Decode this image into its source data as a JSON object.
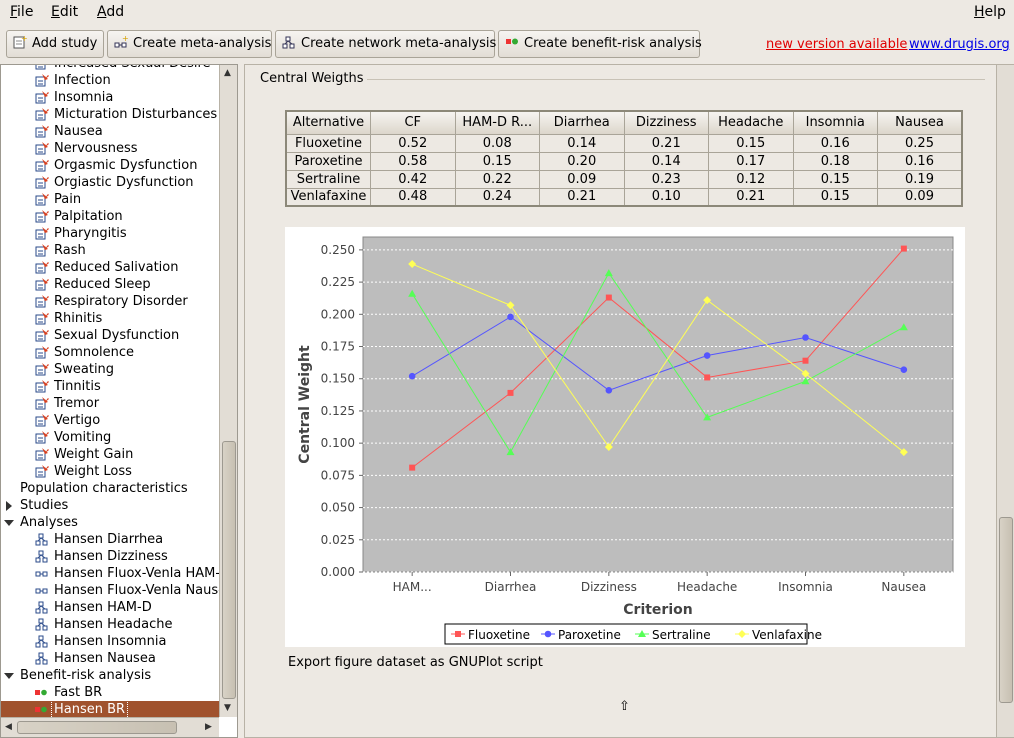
{
  "menubar": {
    "file": {
      "mnemonic": "F",
      "rest": "ile"
    },
    "edit": {
      "mnemonic": "E",
      "rest": "dit"
    },
    "add": {
      "mnemonic": "A",
      "rest": "dd"
    },
    "help": {
      "mnemonic": "H",
      "rest": "elp"
    }
  },
  "toolbar": {
    "add_study": "Add study",
    "create_meta": "Create meta-analysis",
    "create_network": "Create network meta-analysis",
    "create_br": "Create benefit-risk analysis",
    "new_version": "new version available",
    "website": "www.drugis.org"
  },
  "tree": {
    "endpoints": [
      "Increased Sexual Desire",
      "Infection",
      "Insomnia",
      "Micturation Disturbances",
      "Nausea",
      "Nervousness",
      "Orgasmic Dysfunction",
      "Orgiastic Dysfunction",
      "Pain",
      "Palpitation",
      "Pharyngitis",
      "Rash",
      "Reduced Salivation",
      "Reduced Sleep",
      "Respiratory Disorder",
      "Rhinitis",
      "Sexual Dysfunction",
      "Somnolence",
      "Sweating",
      "Tinnitis",
      "Tremor",
      "Vertigo",
      "Vomiting",
      "Weight Gain",
      "Weight Loss"
    ],
    "population": "Population characteristics",
    "studies": "Studies",
    "analyses_header": "Analyses",
    "analyses": [
      {
        "label": "Hansen Diarrhea",
        "kind": "network"
      },
      {
        "label": "Hansen Dizziness",
        "kind": "network"
      },
      {
        "label": "Hansen Fluox-Venla HAM-D",
        "kind": "pairwise"
      },
      {
        "label": "Hansen Fluox-Venla Nausea",
        "kind": "pairwise"
      },
      {
        "label": "Hansen HAM-D",
        "kind": "network"
      },
      {
        "label": "Hansen Headache",
        "kind": "network"
      },
      {
        "label": "Hansen Insomnia",
        "kind": "network"
      },
      {
        "label": "Hansen Nausea",
        "kind": "network"
      }
    ],
    "br_header": "Benefit-risk analysis",
    "br_items": [
      "Fast BR",
      "Hansen BR"
    ]
  },
  "section": {
    "title": "Central Weigths",
    "export": "Export figure dataset as GNUPlot script"
  },
  "table": {
    "headers": [
      "Alternative",
      "CF",
      "HAM-D R...",
      "Diarrhea",
      "Dizziness",
      "Headache",
      "Insomnia",
      "Nausea"
    ],
    "rows": [
      [
        "Fluoxetine",
        "0.52",
        "0.08",
        "0.14",
        "0.21",
        "0.15",
        "0.16",
        "0.25"
      ],
      [
        "Paroxetine",
        "0.58",
        "0.15",
        "0.20",
        "0.14",
        "0.17",
        "0.18",
        "0.16"
      ],
      [
        "Sertraline",
        "0.42",
        "0.22",
        "0.09",
        "0.23",
        "0.12",
        "0.15",
        "0.19"
      ],
      [
        "Venlafaxine",
        "0.48",
        "0.24",
        "0.21",
        "0.10",
        "0.21",
        "0.15",
        "0.09"
      ]
    ]
  },
  "chart_data": {
    "type": "line",
    "xlabel": "Criterion",
    "ylabel": "Central Weight",
    "categories": [
      "HAM...",
      "Diarrhea",
      "Dizziness",
      "Headache",
      "Insomnia",
      "Nausea"
    ],
    "ylim": [
      0,
      0.26
    ],
    "yticks": [
      "0.000",
      "0.025",
      "0.050",
      "0.075",
      "0.100",
      "0.125",
      "0.150",
      "0.175",
      "0.200",
      "0.225",
      "0.250"
    ],
    "grid": true,
    "legend": "bottom",
    "series": [
      {
        "name": "Fluoxetine",
        "color": "#ff5555",
        "marker": "square",
        "values": [
          0.081,
          0.139,
          0.213,
          0.151,
          0.164,
          0.251
        ]
      },
      {
        "name": "Paroxetine",
        "color": "#5555ff",
        "marker": "circle",
        "values": [
          0.152,
          0.198,
          0.141,
          0.168,
          0.182,
          0.157
        ]
      },
      {
        "name": "Sertraline",
        "color": "#55ff55",
        "marker": "triangle",
        "values": [
          0.216,
          0.093,
          0.232,
          0.12,
          0.148,
          0.19
        ]
      },
      {
        "name": "Venlafaxine",
        "color": "#ffff55",
        "marker": "diamond",
        "values": [
          0.239,
          0.207,
          0.097,
          0.211,
          0.154,
          0.093
        ]
      }
    ]
  }
}
